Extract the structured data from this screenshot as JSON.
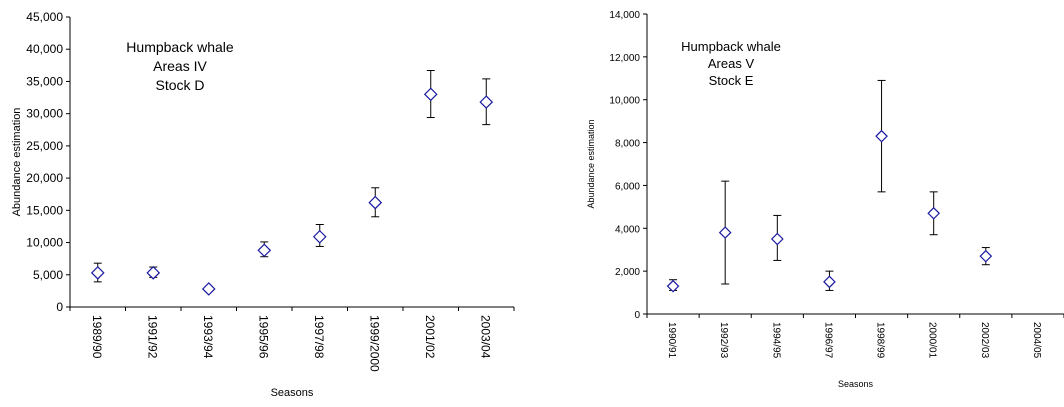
{
  "chart_data": [
    {
      "type": "scatter",
      "title": "",
      "annotation": [
        "Humpback whale",
        "Areas IV",
        "Stock D"
      ],
      "xlabel": "Seasons",
      "ylabel": "Abundance estimation",
      "ylim": [
        0,
        45000
      ],
      "yticks": [
        0,
        5000,
        10000,
        15000,
        20000,
        25000,
        30000,
        35000,
        40000,
        45000
      ],
      "ytick_labels": [
        "0",
        "5,000",
        "10,000",
        "15,000",
        "20,000",
        "25,000",
        "30,000",
        "35,000",
        "40,000",
        "45,000"
      ],
      "categories": [
        "1989/90",
        "1991/92",
        "1993/94",
        "1995/96",
        "1997/98",
        "1999/2000",
        "2001/02",
        "2003/04"
      ],
      "values": [
        5300,
        5300,
        2800,
        8800,
        10900,
        16200,
        33000,
        31800
      ],
      "error_low": [
        3900,
        4600,
        2800,
        7800,
        9400,
        14000,
        29400,
        28300
      ],
      "error_high": [
        6800,
        6200,
        2800,
        10100,
        12800,
        18500,
        36700,
        35400
      ],
      "marker": "open-diamond",
      "marker_color": "#1a1aa0",
      "grid": false
    },
    {
      "type": "scatter",
      "title": "",
      "annotation": [
        "Humpback whale",
        "Areas V",
        "Stock E"
      ],
      "xlabel": "Seasons",
      "ylabel": "Abundance estimation",
      "ylim": [
        0,
        14000
      ],
      "yticks": [
        0,
        2000,
        4000,
        6000,
        8000,
        10000,
        12000,
        14000
      ],
      "ytick_labels": [
        "0",
        "2,000",
        "4,000",
        "6,000",
        "8,000",
        "10,000",
        "12,000",
        "14,000"
      ],
      "categories": [
        "1990/91",
        "1992/93",
        "1994/95",
        "1996/97",
        "1998/99",
        "2000/01",
        "2002/03",
        "2004/05"
      ],
      "values": [
        1300,
        3800,
        3500,
        1500,
        8300,
        4700,
        2700,
        null
      ],
      "error_low": [
        1100,
        1400,
        2500,
        1100,
        5700,
        3700,
        2300,
        null
      ],
      "error_high": [
        1600,
        6200,
        4600,
        2000,
        10900,
        5700,
        3100,
        null
      ],
      "marker": "open-diamond",
      "marker_color": "#1a1aa0",
      "grid": false
    }
  ]
}
